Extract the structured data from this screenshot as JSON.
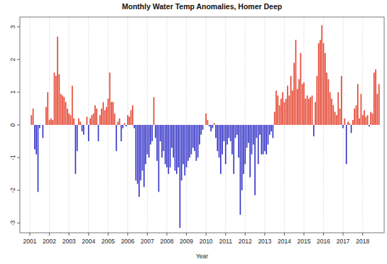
{
  "chart_data": {
    "type": "bar",
    "title": "Monthly Water Temp Anomalies, Homer Deep",
    "x_label": "Year",
    "categories": [
      "2001",
      null,
      null,
      null,
      null,
      null,
      null,
      null,
      null,
      null,
      null,
      null,
      "2002",
      null,
      null,
      null,
      null,
      null,
      null,
      null,
      null,
      null,
      null,
      null,
      "2003",
      null,
      null,
      null,
      null,
      null,
      null,
      null,
      null,
      null,
      null,
      null,
      "2004",
      null,
      null,
      null,
      null,
      null,
      null,
      null,
      null,
      null,
      null,
      null,
      "2005",
      null,
      null,
      null,
      null,
      null,
      null,
      null,
      null,
      null,
      null,
      null,
      "2006",
      null,
      null,
      null,
      null,
      null,
      null,
      null,
      null,
      null,
      null,
      null,
      "2007",
      null,
      null,
      null,
      null,
      null,
      null,
      null,
      null,
      null,
      null,
      null,
      "2008",
      null,
      null,
      null,
      null,
      null,
      null,
      null,
      null,
      null,
      null,
      null,
      "2009",
      null,
      null,
      null,
      null,
      null,
      null,
      null,
      null,
      null,
      null,
      null,
      "2010",
      null,
      null,
      null,
      null,
      null,
      null,
      null,
      null,
      null,
      null,
      null,
      "2011",
      null,
      null,
      null,
      null,
      null,
      null,
      null,
      null,
      null,
      null,
      null,
      "2012",
      null,
      null,
      null,
      null,
      null,
      null,
      null,
      null,
      null,
      null,
      null,
      "2013",
      null,
      null,
      null,
      null,
      null,
      null,
      null,
      null,
      null,
      null,
      null,
      "2014",
      null,
      null,
      null,
      null,
      null,
      null,
      null,
      null,
      null,
      null,
      null,
      "2015",
      null,
      null,
      null,
      null,
      null,
      null,
      null,
      null,
      null,
      null,
      null,
      "2016",
      null,
      null,
      null,
      null,
      null,
      null,
      null,
      null,
      null,
      null,
      null,
      "2017",
      null,
      null,
      null,
      null,
      null,
      null,
      null,
      null,
      null,
      null,
      null,
      "2018",
      null,
      null,
      null,
      null,
      null,
      null,
      null,
      null,
      null,
      null,
      null
    ],
    "values": [
      null,
      0.3,
      0.5,
      -0.75,
      -0.9,
      -2.05,
      -0.1,
      null,
      -0.4,
      null,
      0.55,
      1.0,
      0.15,
      0.2,
      0.15,
      1.6,
      1.5,
      2.7,
      1.55,
      0.95,
      0.9,
      0.85,
      0.7,
      0.5,
      0.35,
      0.3,
      1.2,
      0.2,
      -1.5,
      -0.8,
      0.2,
      0.1,
      -0.2,
      -0.3,
      null,
      0.25,
      -0.5,
      0.2,
      0.3,
      0.35,
      0.6,
      0.5,
      -0.5,
      0.3,
      0.5,
      0.7,
      0.45,
      0.55,
      0.8,
      1.6,
      0.7,
      0.7,
      0.35,
      -0.8,
      0.1,
      0.2,
      -0.5,
      -0.1,
      0.05,
      -0.05,
      0.3,
      0.25,
      0.45,
      0.6,
      -0.1,
      -1.7,
      -1.8,
      -2.2,
      -1.7,
      -1.4,
      -1.9,
      -1.2,
      -0.9,
      -1.0,
      -0.6,
      -0.5,
      0.85,
      -0.4,
      -1.1,
      -2.05,
      -0.5,
      -1.0,
      -0.8,
      -1.2,
      -1.3,
      -1.5,
      -1.3,
      -0.7,
      -1.0,
      -1.4,
      -1.5,
      -1.3,
      -3.15,
      -1.7,
      -1.2,
      -1.55,
      -1.3,
      -1.1,
      -1.0,
      -0.9,
      -0.7,
      -0.8,
      -1.1,
      -1.0,
      -0.6,
      -0.3,
      -0.15,
      null,
      0.35,
      0.15,
      -0.05,
      -0.2,
      -0.1,
      0.05,
      -0.4,
      -0.8,
      -1.0,
      -1.5,
      -0.9,
      -0.5,
      -1.2,
      -0.6,
      -0.4,
      -0.5,
      -0.9,
      -1.5,
      -0.4,
      -0.3,
      -1.0,
      -2.75,
      -2.0,
      -1.5,
      -1.2,
      -0.7,
      -0.55,
      -1.6,
      -0.9,
      -0.6,
      -2.15,
      -0.4,
      -1.2,
      -0.3,
      -0.9,
      -0.9,
      -0.8,
      -0.9,
      -0.6,
      -0.3,
      -0.2,
      -0.4,
      0.4,
      1.05,
      0.9,
      0.6,
      0.8,
      1.0,
      0.7,
      0.8,
      1.2,
      0.9,
      1.5,
      1.05,
      1.9,
      2.6,
      1.1,
      1.4,
      2.2,
      1.25,
      1.3,
      0.8,
      0.9,
      0.8,
      0.85,
      0.9,
      -0.35,
      0.7,
      1.5,
      2.5,
      2.6,
      3.05,
      2.5,
      2.2,
      1.6,
      1.4,
      1.0,
      0.8,
      0.6,
      0.4,
      0.3,
      1.0,
      0.5,
      1.5,
      -0.1,
      0.2,
      -1.2,
      0.1,
      0.05,
      -0.25,
      0.15,
      0.5,
      0.6,
      1.25,
      0.2,
      0.95,
      0.3,
      0.45,
      0.25,
      0.3,
      -0.05,
      0.4,
      0.35,
      1.6,
      1.7,
      0.95,
      1.25,
      null
    ],
    "colors": [
      "#e5432f",
      "#e5432f",
      "#e5432f",
      "#3535c8",
      "#3535c8",
      "#3535c8",
      "#3535c8",
      "#e5432f",
      "#3535c8",
      "#e5432f",
      "#e5432f",
      "#e5432f",
      "#e5432f",
      "#e5432f",
      "#e5432f",
      "#e5432f",
      "#e5432f",
      "#e5432f",
      "#e5432f",
      "#e5432f",
      "#e5432f",
      "#e5432f",
      "#e5432f",
      "#e5432f",
      "#e5432f",
      "#e5432f",
      "#e5432f",
      "#e5432f",
      "#3535c8",
      "#3535c8",
      "#e5432f",
      "#e5432f",
      "#3535c8",
      "#3535c8",
      "#e5432f",
      "#e5432f",
      "#3535c8",
      "#e5432f",
      "#e5432f",
      "#e5432f",
      "#e5432f",
      "#e5432f",
      "#3535c8",
      "#e5432f",
      "#e5432f",
      "#e5432f",
      "#e5432f",
      "#e5432f",
      "#e5432f",
      "#e5432f",
      "#e5432f",
      "#e5432f",
      "#e5432f",
      "#3535c8",
      "#e5432f",
      "#e5432f",
      "#3535c8",
      "#3535c8",
      "#e5432f",
      "#3535c8",
      "#e5432f",
      "#e5432f",
      "#e5432f",
      "#e5432f",
      "#3535c8",
      "#3535c8",
      "#3535c8",
      "#3535c8",
      "#3535c8",
      "#3535c8",
      "#3535c8",
      "#3535c8",
      "#3535c8",
      "#3535c8",
      "#3535c8",
      "#3535c8",
      "#e5432f",
      "#3535c8",
      "#3535c8",
      "#3535c8",
      "#3535c8",
      "#3535c8",
      "#3535c8",
      "#3535c8",
      "#3535c8",
      "#3535c8",
      "#3535c8",
      "#3535c8",
      "#3535c8",
      "#3535c8",
      "#3535c8",
      "#3535c8",
      "#3535c8",
      "#3535c8",
      "#3535c8",
      "#3535c8",
      "#3535c8",
      "#3535c8",
      "#3535c8",
      "#3535c8",
      "#3535c8",
      "#3535c8",
      "#3535c8",
      "#3535c8",
      "#3535c8",
      "#3535c8",
      "#3535c8",
      "#3535c8",
      "#e5432f",
      "#e5432f",
      "#3535c8",
      "#3535c8",
      "#3535c8",
      "#e5432f",
      "#3535c8",
      "#3535c8",
      "#3535c8",
      "#3535c8",
      "#3535c8",
      "#3535c8",
      "#3535c8",
      "#3535c8",
      "#3535c8",
      "#3535c8",
      "#3535c8",
      "#3535c8",
      "#3535c8",
      "#3535c8",
      "#3535c8",
      "#3535c8",
      "#3535c8",
      "#3535c8",
      "#3535c8",
      "#3535c8",
      "#3535c8",
      "#3535c8",
      "#3535c8",
      "#3535c8",
      "#3535c8",
      "#3535c8",
      "#3535c8",
      "#3535c8",
      "#3535c8",
      "#3535c8",
      "#3535c8",
      "#3535c8",
      "#3535c8",
      "#3535c8",
      "#3535c8",
      "#3535c8",
      "#e5432f",
      "#e5432f",
      "#e5432f",
      "#e5432f",
      "#e5432f",
      "#e5432f",
      "#e5432f",
      "#e5432f",
      "#e5432f",
      "#e5432f",
      "#e5432f",
      "#e5432f",
      "#e5432f",
      "#e5432f",
      "#e5432f",
      "#e5432f",
      "#e5432f",
      "#e5432f",
      "#e5432f",
      "#e5432f",
      "#e5432f",
      "#e5432f",
      "#e5432f",
      "#e5432f",
      "#3535c8",
      "#e5432f",
      "#e5432f",
      "#e5432f",
      "#e5432f",
      "#e5432f",
      "#e5432f",
      "#e5432f",
      "#e5432f",
      "#e5432f",
      "#e5432f",
      "#e5432f",
      "#e5432f",
      "#e5432f",
      "#e5432f",
      "#e5432f",
      "#e5432f",
      "#e5432f",
      "#3535c8",
      "#e5432f",
      "#3535c8",
      "#e5432f",
      "#e5432f",
      "#3535c8",
      "#e5432f",
      "#e5432f",
      "#e5432f",
      "#e5432f",
      "#e5432f",
      "#e5432f",
      "#e5432f",
      "#e5432f",
      "#e5432f",
      "#e5432f",
      "#3535c8",
      "#e5432f",
      "#e5432f",
      "#e5432f",
      "#e5432f",
      "#e5432f",
      "#e5432f",
      "#e5432f"
    ],
    "ylim": [
      -3.3,
      3.3
    ],
    "yticks": [
      -3,
      -2,
      -1,
      0,
      1,
      2,
      3
    ],
    "grid": true
  }
}
